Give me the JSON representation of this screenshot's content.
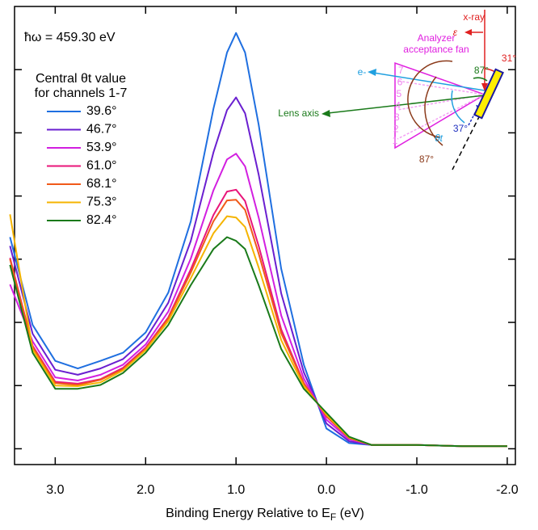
{
  "chart_data": {
    "type": "line",
    "annotation": "ħω = 459.30 eV",
    "legend_title": [
      "Central θt value",
      "for channels 1-7"
    ],
    "x_label": [
      "Binding Energy Relative to E",
      "F",
      " (eV)"
    ],
    "x": [
      3.5,
      3.25,
      3.0,
      2.75,
      2.5,
      2.25,
      2.0,
      1.75,
      1.5,
      1.25,
      1.1,
      1.0,
      0.9,
      0.75,
      0.5,
      0.25,
      0.0,
      -0.25,
      -0.5,
      -1.0,
      -1.5,
      -2.0
    ],
    "xlim": [
      3.45,
      -2.09
    ],
    "xticks": [
      {
        "value": 3.0,
        "label": "3.0"
      },
      {
        "value": 2.0,
        "label": "2.0"
      },
      {
        "value": 1.0,
        "label": "1.0"
      },
      {
        "value": 0.0,
        "label": "0.0"
      },
      {
        "value": -1.0,
        "label": "-1.0"
      },
      {
        "value": -2.0,
        "label": "-2.0"
      }
    ],
    "ylim": [
      -0.25,
      7.0
    ],
    "yticks": [
      0,
      1,
      2,
      3,
      4,
      5,
      6
    ],
    "series": [
      {
        "name": "39.6°",
        "color": "#1f6fe0",
        "values": [
          3.35,
          1.96,
          1.39,
          1.27,
          1.39,
          1.52,
          1.84,
          2.47,
          3.6,
          5.38,
          6.27,
          6.58,
          6.27,
          5.13,
          2.85,
          1.33,
          0.32,
          0.09,
          0.06,
          0.06,
          0.04,
          0.04
        ]
      },
      {
        "name": "46.7°",
        "color": "#6a1fd0",
        "values": [
          3.21,
          1.82,
          1.25,
          1.17,
          1.27,
          1.42,
          1.74,
          2.31,
          3.29,
          4.69,
          5.36,
          5.56,
          5.31,
          4.34,
          2.46,
          1.21,
          0.4,
          0.12,
          0.06,
          0.06,
          0.04,
          0.04
        ]
      },
      {
        "name": "53.9°",
        "color": "#d21fe0",
        "values": [
          2.6,
          1.7,
          1.13,
          1.08,
          1.17,
          1.33,
          1.65,
          2.17,
          3.01,
          4.09,
          4.58,
          4.67,
          4.47,
          3.66,
          2.11,
          1.11,
          0.46,
          0.15,
          0.06,
          0.06,
          0.04,
          0.04
        ]
      },
      {
        "name": "61.0°",
        "color": "#e8157a",
        "values": [
          3.02,
          1.63,
          1.06,
          1.03,
          1.1,
          1.28,
          1.6,
          2.08,
          2.84,
          3.7,
          4.07,
          4.1,
          3.92,
          3.21,
          1.89,
          1.04,
          0.51,
          0.17,
          0.06,
          0.06,
          0.04,
          0.04
        ]
      },
      {
        "name": "68.1°",
        "color": "#f05a1a",
        "values": [
          3.0,
          1.61,
          1.04,
          1.01,
          1.09,
          1.26,
          1.58,
          2.06,
          2.79,
          3.6,
          3.93,
          3.94,
          3.78,
          3.09,
          1.83,
          1.03,
          0.52,
          0.17,
          0.06,
          0.06,
          0.04,
          0.04
        ]
      },
      {
        "name": "75.3°",
        "color": "#f5b400",
        "values": [
          3.71,
          1.57,
          1.0,
          0.99,
          1.05,
          1.24,
          1.56,
          2.02,
          2.7,
          3.41,
          3.68,
          3.66,
          3.51,
          2.87,
          1.72,
          0.99,
          0.54,
          0.18,
          0.06,
          0.06,
          0.04,
          0.04
        ]
      },
      {
        "name": "82.4°",
        "color": "#1a7a1a",
        "values": [
          2.91,
          1.52,
          0.95,
          0.95,
          1.01,
          1.2,
          1.52,
          1.96,
          2.59,
          3.16,
          3.35,
          3.29,
          3.16,
          2.59,
          1.58,
          0.95,
          0.57,
          0.19,
          0.06,
          0.06,
          0.04,
          0.04
        ]
      }
    ],
    "diagram": {
      "fan_label": [
        "Analyzer",
        "acceptance fan"
      ],
      "xray": "x-ray",
      "epsilon": "ε",
      "angle_green": "87°",
      "angle_red": "31°",
      "electron": "e-",
      "lens_axis": "Lens axis",
      "angle_blue": "37°",
      "theta": "θt",
      "angle_brown": "87°",
      "channels": [
        "1",
        "2",
        "3",
        "4",
        "5",
        "6",
        "7"
      ]
    }
  }
}
